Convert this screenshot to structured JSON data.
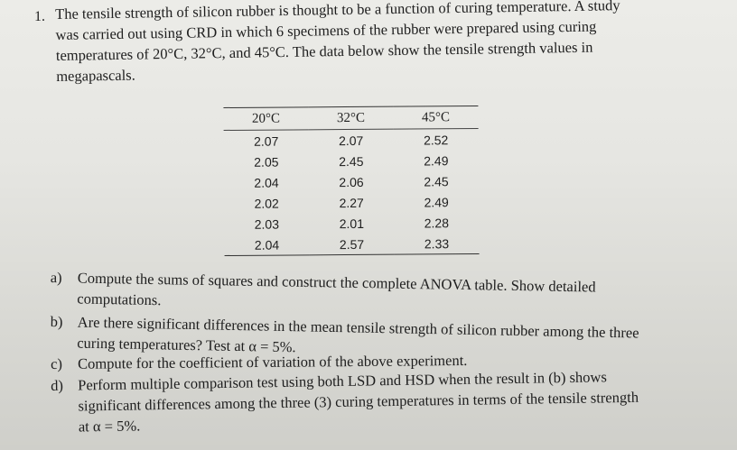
{
  "question": {
    "number": "1.",
    "intro_lines": [
      "The tensile strength of silicon rubber is thought to be a function of curing temperature. A study",
      "was carried out using CRD in which 6 specimens of the rubber were prepared using curing",
      "temperatures of 20°C, 32°C, and 45°C. The data below show the tensile strength values in",
      "megapascals."
    ]
  },
  "table": {
    "headers": [
      "20°C",
      "32°C",
      "45°C"
    ],
    "rows": [
      [
        "2.07",
        "2.07",
        "2.52"
      ],
      [
        "2.05",
        "2.45",
        "2.49"
      ],
      [
        "2.04",
        "2.06",
        "2.45"
      ],
      [
        "2.02",
        "2.27",
        "2.49"
      ],
      [
        "2.03",
        "2.01",
        "2.28"
      ],
      [
        "2.04",
        "2.57",
        "2.33"
      ]
    ]
  },
  "parts": [
    {
      "letter": "a)",
      "lines": [
        "Compute the sums of squares and construct the complete ANOVA table. Show detailed",
        "computations."
      ]
    },
    {
      "letter": "b)",
      "lines": [
        "Are there significant differences in the mean tensile strength of silicon rubber among the three",
        "curing temperatures? Test at α = 5%."
      ]
    },
    {
      "letter": "c)",
      "lines": [
        "Compute for the coefficient of variation of the above experiment."
      ]
    },
    {
      "letter": "d)",
      "lines": [
        "Perform multiple comparison test using both LSD and HSD when the result in (b) shows",
        "significant differences among the three (3) curing temperatures in terms of the tensile strength",
        "at α = 5%."
      ]
    }
  ]
}
